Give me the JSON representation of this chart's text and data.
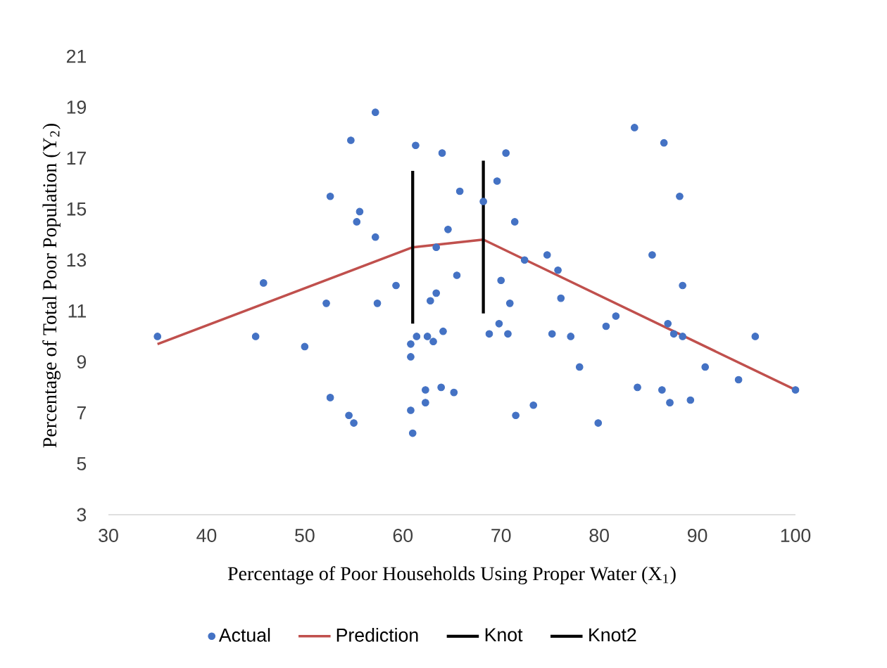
{
  "chart_data": {
    "type": "scatter",
    "xlabel": "Percentage of Poor Households Using Proper Water (X$_{1}$)",
    "ylabel": "Percentage of Total Poor Population (Y$_{2}$)",
    "xlim": [
      30,
      100
    ],
    "xticks": [
      30,
      40,
      50,
      60,
      70,
      80,
      90,
      100
    ],
    "ylim": [
      3,
      21
    ],
    "yticks": [
      3,
      5,
      7,
      9,
      11,
      13,
      15,
      17,
      19,
      21
    ],
    "legend": "bottom",
    "marker": "circle",
    "series": [
      {
        "name": "Actual",
        "color": "#4472c4",
        "x": [
          35,
          45,
          45.8,
          50,
          52.2,
          52.6,
          52.6,
          54.5,
          55,
          54.7,
          55.3,
          55.6,
          57.2,
          57.2,
          57.4,
          59.3,
          60.8,
          60.8,
          60.8,
          61,
          61.3,
          61.4,
          62.3,
          62.3,
          62.5,
          63.1,
          62.8,
          63.4,
          63.4,
          63.9,
          64.1,
          64,
          64.6,
          65.2,
          65.5,
          65.8,
          68.2,
          68.8,
          70.5,
          69.6,
          71.4,
          72.4,
          74.7,
          75.8,
          70,
          70.9,
          76.1,
          69.8,
          70.7,
          75.2,
          77.1,
          78,
          71.5,
          73.3,
          79.9,
          80.7,
          81.7,
          83.6,
          83.9,
          85.4,
          86.6,
          86.4,
          87.2,
          88.2,
          88.5,
          87,
          87.6,
          88.5,
          89.3,
          90.8,
          94.2,
          95.9,
          100
        ],
        "values": [
          10,
          10,
          12.1,
          9.6,
          11.3,
          7.6,
          15.5,
          6.9,
          6.6,
          17.7,
          14.5,
          14.9,
          18.8,
          13.9,
          11.3,
          12,
          9.7,
          9.2,
          7.1,
          6.2,
          17.5,
          10,
          7.9,
          7.4,
          10,
          9.8,
          11.4,
          11.7,
          13.5,
          8,
          10.2,
          17.2,
          14.2,
          7.8,
          12.4,
          15.7,
          15.3,
          10.1,
          17.2,
          16.1,
          14.5,
          13,
          13.2,
          12.6,
          12.2,
          11.3,
          11.5,
          10.5,
          10.1,
          10.1,
          10,
          8.8,
          6.9,
          7.3,
          6.6,
          10.4,
          10.8,
          18.2,
          8,
          13.2,
          17.6,
          7.9,
          7.4,
          15.5,
          12,
          10.5,
          10.1,
          10,
          7.5,
          8.8,
          8.3,
          10,
          7.9
        ]
      },
      {
        "name": "Prediction",
        "type": "line",
        "marker": "none",
        "color": "#c0504d",
        "x": [
          35,
          61,
          68.2,
          100
        ],
        "values": [
          9.7,
          13.5,
          13.8,
          7.9
        ]
      },
      {
        "name": "Knot",
        "type": "line",
        "marker": "none",
        "color": "#000000",
        "x": [
          61,
          61
        ],
        "values": [
          10.5,
          16.5
        ]
      },
      {
        "name": "Knot2",
        "type": "line",
        "marker": "none",
        "color": "#000000",
        "x": [
          68.2,
          68.2
        ],
        "values": [
          10.9,
          16.9
        ]
      }
    ]
  }
}
